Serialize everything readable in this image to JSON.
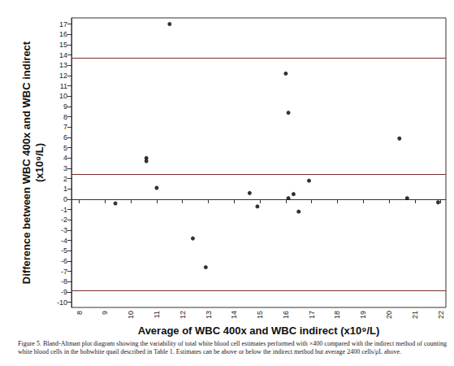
{
  "chart_data": {
    "type": "scatter",
    "x_label": "Average of WBC 400x and WBC indirect (x10⁹/L)",
    "y_label": "Difference between WBC 400x and WBC indirect\n(x10⁹/L)",
    "caption": "Figure 5. Bland-Altman plot diagram showing the variability of total white blood cell estimates performed with ×400 compared with the indirect method of counting white blood cells in the bobwhite quail described in Table 1. Estimates can be above or below the indirect method but average 2400 cells/μL above.",
    "x": [
      9.4,
      10.6,
      10.6,
      11.0,
      11.5,
      12.4,
      12.9,
      14.6,
      14.9,
      16.0,
      16.1,
      16.1,
      16.3,
      16.5,
      16.9,
      20.4,
      20.7,
      21.9
    ],
    "values": [
      -0.4,
      4.0,
      3.7,
      1.1,
      17.0,
      -3.8,
      -6.6,
      0.6,
      -0.7,
      12.2,
      0.1,
      8.4,
      0.5,
      -1.2,
      1.8,
      5.9,
      0.1,
      -0.3
    ],
    "color": "#000000",
    "marker": "circle",
    "reference_lines": {
      "values": [
        13.7,
        2.4,
        -8.9
      ],
      "color": "#7b2d2d"
    },
    "xlim": [
      7.7,
      22.2
    ],
    "xticks": [
      8,
      9,
      10,
      11,
      12,
      13,
      14,
      15,
      16,
      17,
      18,
      19,
      20,
      21,
      22
    ],
    "ylim": [
      -10.5,
      17.6
    ],
    "yticks": [
      -10,
      -9,
      -8,
      -7,
      -6,
      -5,
      -4,
      -3,
      -2,
      -1,
      0,
      1,
      2,
      3,
      4,
      5,
      6,
      7,
      8,
      9,
      10,
      11,
      12,
      13,
      14,
      15,
      16,
      17
    ],
    "grid": false
  }
}
